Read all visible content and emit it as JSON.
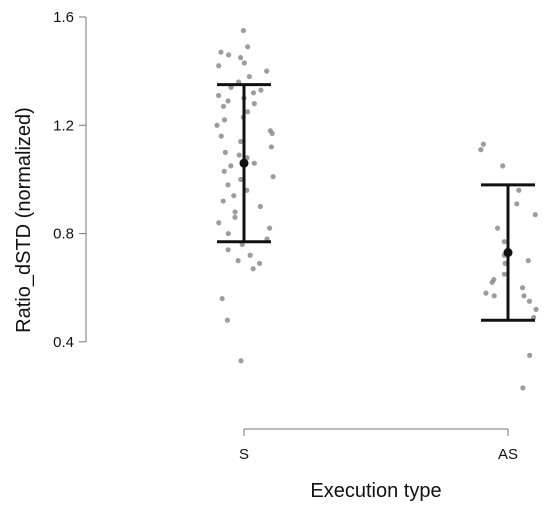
{
  "chart_data": {
    "type": "scatter",
    "title": "",
    "xlabel": "Execution type",
    "ylabel": "Ratio_dSTD (normalized)",
    "categories": [
      "S",
      "AS"
    ],
    "yticks": [
      "0.4",
      "0.8",
      "1.2",
      "1.6"
    ],
    "ytick_values": [
      0.4,
      0.8,
      1.2,
      1.6
    ],
    "ylim": [
      0.2,
      1.6
    ],
    "grid": false,
    "summary": [
      {
        "category": "S",
        "mean": 1.06,
        "upper": 1.35,
        "lower": 0.77
      },
      {
        "category": "AS",
        "mean": 0.73,
        "upper": 0.98,
        "lower": 0.48
      }
    ],
    "points": [
      {
        "category": "S",
        "values": [
          1.55,
          1.49,
          1.47,
          1.46,
          1.45,
          1.43,
          1.42,
          1.4,
          1.38,
          1.36,
          1.34,
          1.33,
          1.32,
          1.31,
          1.3,
          1.29,
          1.28,
          1.27,
          1.25,
          1.23,
          1.22,
          1.2,
          1.18,
          1.17,
          1.16,
          1.14,
          1.12,
          1.1,
          1.09,
          1.08,
          1.06,
          1.05,
          1.03,
          1.01,
          1.0,
          0.98,
          0.96,
          0.94,
          0.92,
          0.9,
          0.88,
          0.86,
          0.84,
          0.82,
          0.8,
          0.78,
          0.76,
          0.74,
          0.72,
          0.7,
          0.69,
          0.67,
          0.56,
          0.48,
          0.33
        ]
      },
      {
        "category": "AS",
        "values": [
          1.13,
          1.11,
          1.05,
          0.96,
          0.91,
          0.87,
          0.82,
          0.77,
          0.74,
          0.72,
          0.7,
          0.69,
          0.65,
          0.63,
          0.62,
          0.6,
          0.58,
          0.57,
          0.57,
          0.55,
          0.52,
          0.49,
          0.35,
          0.23
        ]
      }
    ],
    "colors": {
      "points": "#8c8c8c",
      "summary": "#111111",
      "axis": "#777777"
    }
  }
}
